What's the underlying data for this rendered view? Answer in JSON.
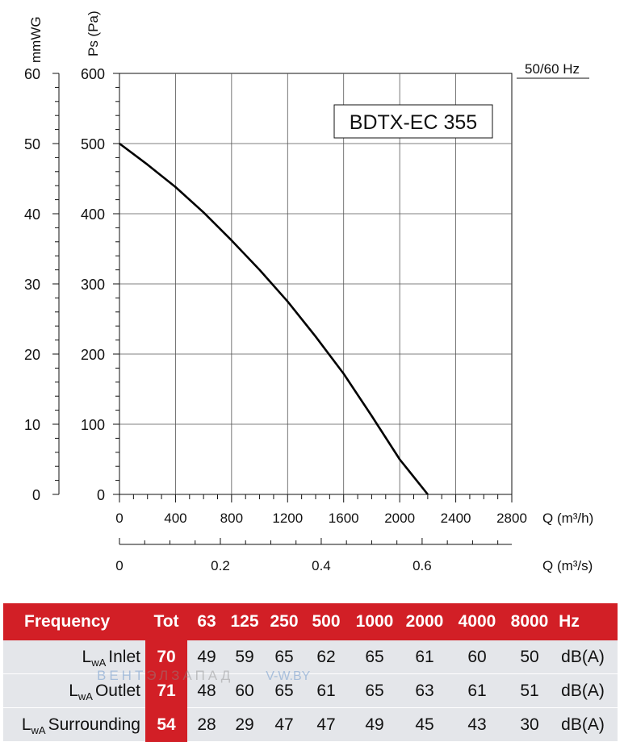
{
  "chart_data": {
    "type": "line",
    "title": "BDTX-EC 355",
    "frequency_label": "50/60 Hz",
    "y_left": {
      "label": "mmWG",
      "ticks": [
        "0",
        "10",
        "20",
        "30",
        "40",
        "50",
        "60"
      ],
      "ylim": [
        0,
        60
      ]
    },
    "y_right": {
      "label": "Ps (Pa)",
      "ticks": [
        "0",
        "100",
        "200",
        "300",
        "400",
        "500",
        "600"
      ],
      "ylim": [
        0,
        600
      ]
    },
    "x_primary": {
      "label": "Q (m³/h)",
      "ticks": [
        "0",
        "400",
        "800",
        "1200",
        "1600",
        "2000",
        "2400",
        "2800"
      ],
      "xlim": [
        0,
        2800
      ]
    },
    "x_secondary": {
      "label": "Q (m³/s)",
      "ticks": [
        "0",
        "0.2",
        "0.4",
        "0.6"
      ],
      "values": [
        0,
        0.2,
        0.4,
        0.6
      ]
    },
    "grid": true,
    "series": [
      {
        "x": [
          0,
          200,
          400,
          600,
          800,
          1000,
          1200,
          1400,
          1600,
          1800,
          2000,
          2200
        ],
        "y": [
          500,
          470,
          438,
          402,
          362,
          320,
          275,
          225,
          172,
          112,
          50,
          0
        ]
      }
    ]
  },
  "table": {
    "header": {
      "frequency": "Frequency",
      "tot": "Tot",
      "bands": [
        "63",
        "125",
        "250",
        "500",
        "1000",
        "2000",
        "4000",
        "8000"
      ],
      "unit": "Hz"
    },
    "rows": [
      {
        "lw": "L",
        "sub": "wA",
        "name": "Inlet",
        "tot": "70",
        "values": [
          "49",
          "59",
          "65",
          "62",
          "65",
          "61",
          "60",
          "50"
        ],
        "unit": "dB(A)"
      },
      {
        "lw": "L",
        "sub": "wA",
        "name": "Outlet",
        "tot": "71",
        "values": [
          "48",
          "60",
          "65",
          "61",
          "65",
          "63",
          "61",
          "51"
        ],
        "unit": "dB(A)"
      },
      {
        "lw": "L",
        "sub": "wA",
        "name": "Surrounding",
        "tot": "54",
        "values": [
          "28",
          "29",
          "47",
          "47",
          "49",
          "45",
          "43",
          "30"
        ],
        "unit": "dB(A)"
      }
    ]
  },
  "watermark": {
    "part1": "ВЕНТ",
    "part2": "ЭЛЗАПАД",
    "part3": "V-W.BY"
  }
}
